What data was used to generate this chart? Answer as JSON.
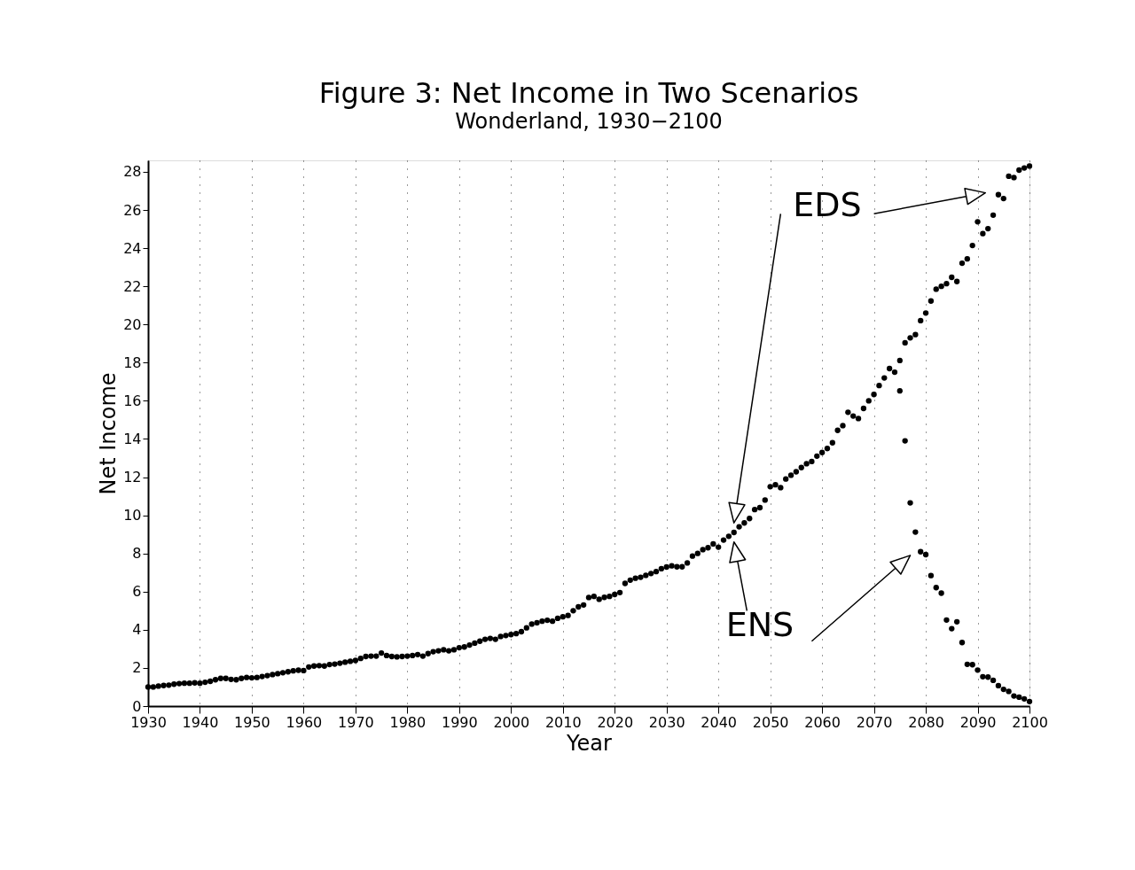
{
  "chart_data": {
    "type": "scatter",
    "title": "Figure 3: Net Income in Two Scenarios",
    "subtitle": "Wonderland, 1930−2100",
    "xlabel": "Year",
    "ylabel": "Net Income",
    "xlim": [
      1930,
      2100
    ],
    "xticks": [
      1930,
      1940,
      1950,
      1960,
      1970,
      1980,
      1990,
      2000,
      2010,
      2020,
      2030,
      2040,
      2050,
      2060,
      2070,
      2080,
      2090,
      2100
    ],
    "ylim": [
      0,
      28.6
    ],
    "yticks": [
      0,
      2,
      4,
      6,
      8,
      10,
      12,
      14,
      16,
      18,
      20,
      22,
      24,
      26,
      28
    ],
    "grid": "x",
    "marker": "circle",
    "series": [
      {
        "color": "#000000",
        "x": [
          1930,
          1931,
          1932,
          1933,
          1934,
          1935,
          1936,
          1937,
          1938,
          1939,
          1940,
          1941,
          1942,
          1943,
          1944,
          1945,
          1946,
          1947,
          1948,
          1949,
          1950,
          1951,
          1952,
          1953,
          1954,
          1955,
          1956,
          1957,
          1958,
          1959,
          1960,
          1961,
          1962,
          1963,
          1964,
          1965,
          1966,
          1967,
          1968,
          1969,
          1970,
          1971,
          1972,
          1973,
          1974,
          1975,
          1976,
          1977,
          1978,
          1979,
          1980,
          1981,
          1982,
          1983,
          1984,
          1985,
          1986,
          1987,
          1988,
          1989,
          1990,
          1991,
          1992,
          1993,
          1994,
          1995,
          1996,
          1997,
          1998,
          1999,
          2000,
          2001,
          2002,
          2003,
          2004,
          2005,
          2006,
          2007,
          2008,
          2009,
          2010,
          2011,
          2012,
          2013,
          2014,
          2015,
          2016,
          2017,
          2018,
          2019,
          2020,
          2021,
          2022,
          2023,
          2024,
          2025,
          2026,
          2027,
          2028,
          2029,
          2030,
          2031,
          2032,
          2033,
          2034,
          2035,
          2036,
          2037,
          2038,
          2039,
          2040,
          2041,
          2042,
          2043,
          2044,
          2045,
          2046,
          2047,
          2048,
          2049,
          2050,
          2051,
          2052,
          2053,
          2054,
          2055,
          2056,
          2057,
          2058,
          2059,
          2060,
          2061,
          2062,
          2063,
          2064,
          2065,
          2066,
          2067,
          2068,
          2069,
          2070,
          2071,
          2072,
          2073,
          2074,
          2075,
          2076,
          2077,
          2078,
          2079,
          2080,
          2081,
          2082,
          2083,
          2084,
          2085,
          2086,
          2087,
          2088,
          2089,
          2090,
          2091,
          2092,
          2093,
          2094,
          2095,
          2096,
          2097,
          2098,
          2099,
          2100
        ],
        "values": [
          1.0,
          1.0,
          1.05,
          1.08,
          1.1,
          1.15,
          1.18,
          1.2,
          1.2,
          1.22,
          1.2,
          1.25,
          1.3,
          1.38,
          1.45,
          1.45,
          1.4,
          1.38,
          1.45,
          1.5,
          1.48,
          1.5,
          1.55,
          1.6,
          1.65,
          1.7,
          1.75,
          1.8,
          1.85,
          1.88,
          1.86,
          2.05,
          2.1,
          2.12,
          2.1,
          2.18,
          2.2,
          2.25,
          2.3,
          2.35,
          2.39,
          2.5,
          2.6,
          2.62,
          2.62,
          2.78,
          2.65,
          2.6,
          2.58,
          2.6,
          2.62,
          2.65,
          2.7,
          2.62,
          2.75,
          2.85,
          2.9,
          2.95,
          2.9,
          2.95,
          3.06,
          3.1,
          3.2,
          3.3,
          3.4,
          3.5,
          3.55,
          3.5,
          3.65,
          3.7,
          3.75,
          3.8,
          3.9,
          4.1,
          4.3,
          4.37,
          4.45,
          4.5,
          4.45,
          4.6,
          4.68,
          4.75,
          5.0,
          5.2,
          5.3,
          5.69,
          5.75,
          5.6,
          5.7,
          5.75,
          5.85,
          5.95,
          6.43,
          6.6,
          6.7,
          6.75,
          6.85,
          6.95,
          7.05,
          7.2,
          7.29,
          7.35,
          7.3,
          7.3,
          7.5,
          7.86,
          8.0,
          8.2,
          8.3,
          8.5,
          8.33,
          8.7,
          8.9,
          9.1,
          9.4,
          9.6,
          9.83,
          10.3,
          10.4,
          10.8,
          11.5,
          11.6,
          11.45,
          11.9,
          12.1,
          12.28,
          12.5,
          12.7,
          12.82,
          13.1,
          13.29,
          13.5,
          13.8,
          14.45,
          14.7,
          15.4,
          15.2,
          15.07,
          15.6,
          16.0,
          16.33,
          16.8,
          17.2,
          17.69,
          17.5,
          18.11,
          19.04,
          19.3,
          19.47,
          20.2,
          20.6,
          21.23,
          21.85,
          22.0,
          22.14,
          22.47,
          22.25,
          23.21,
          23.44,
          24.14,
          25.38,
          24.76,
          25.02,
          25.73,
          26.8,
          26.6,
          27.77,
          27.7,
          28.09,
          28.2,
          28.3
        ]
      },
      {
        "color": "#000000",
        "x": [
          2075,
          2076,
          2077,
          2078,
          2079,
          2080,
          2081,
          2082,
          2083,
          2084,
          2085,
          2086,
          2087,
          2088,
          2089,
          2090,
          2091,
          2092,
          2093,
          2094,
          2095,
          2096,
          2097,
          2098,
          2099,
          2100
        ],
        "values": [
          16.52,
          13.9,
          10.65,
          9.12,
          8.09,
          7.94,
          6.84,
          6.21,
          5.92,
          4.51,
          4.06,
          4.42,
          3.33,
          2.19,
          2.17,
          1.89,
          1.54,
          1.52,
          1.35,
          1.07,
          0.88,
          0.77,
          0.53,
          0.47,
          0.38,
          0.24
        ]
      }
    ],
    "annotations": [
      "EDS",
      "ENS"
    ]
  }
}
